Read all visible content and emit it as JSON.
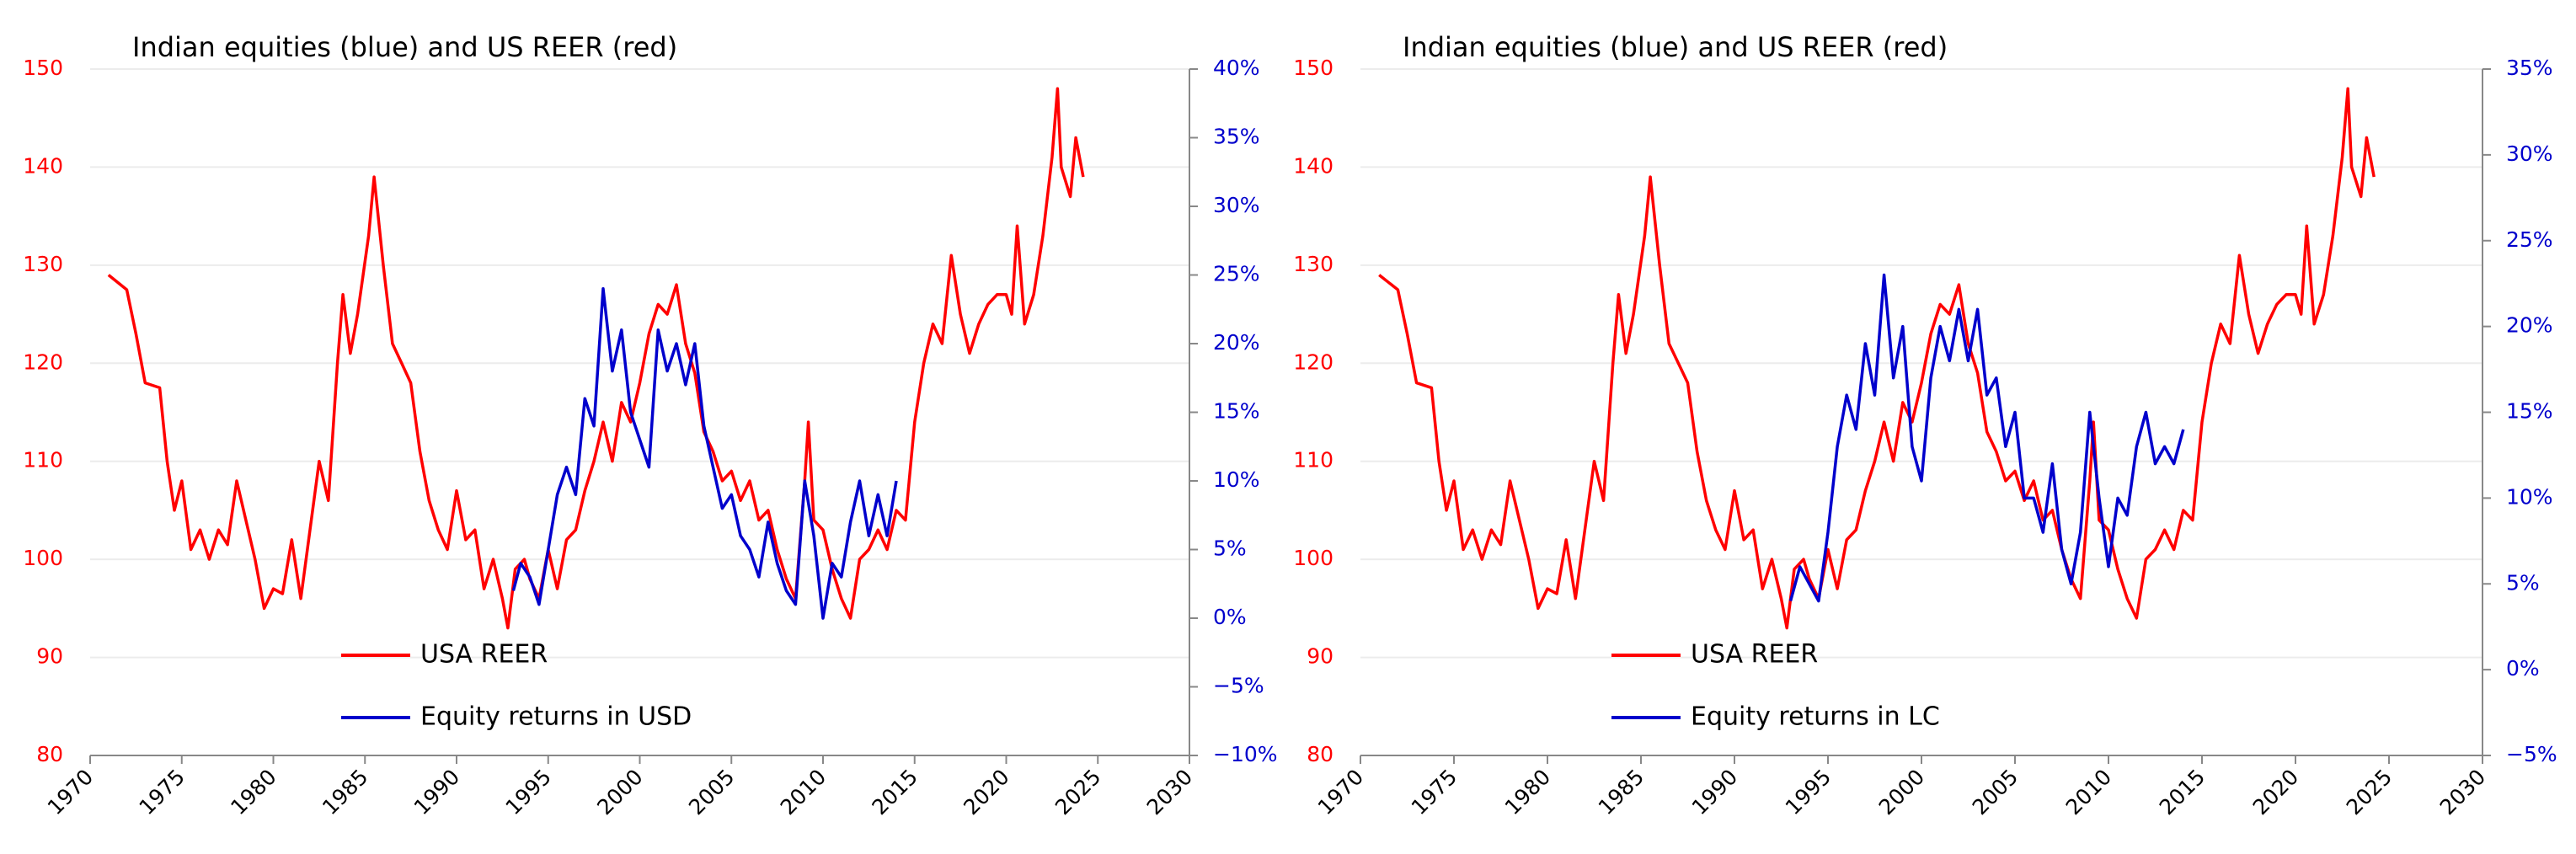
{
  "chart_data": [
    {
      "type": "line",
      "title": "Indian equities (blue) and US REER (red)",
      "xlim": [
        1970,
        2030
      ],
      "xticks": [
        1970,
        1975,
        1980,
        1985,
        1990,
        1995,
        2000,
        2005,
        2010,
        2015,
        2020,
        2025,
        2030
      ],
      "ylim": [
        80,
        150
      ],
      "yticks": [
        80,
        90,
        100,
        110,
        120,
        130,
        140,
        150
      ],
      "y2lim": [
        -10,
        40
      ],
      "y2ticks": [
        {
          "value": -10,
          "label": "−10%"
        },
        {
          "value": -5,
          "label": "−5%"
        },
        {
          "value": 0,
          "label": "0%"
        },
        {
          "value": 5,
          "label": "5%"
        },
        {
          "value": 10,
          "label": "10%"
        },
        {
          "value": 15,
          "label": "15%"
        },
        {
          "value": 20,
          "label": "20%"
        },
        {
          "value": 25,
          "label": "25%"
        },
        {
          "value": 30,
          "label": "30%"
        },
        {
          "value": 35,
          "label": "35%"
        },
        {
          "value": 40,
          "label": "40%"
        }
      ],
      "grid": true,
      "legend": "lower left",
      "series": [
        {
          "name": "USA REER",
          "color": "#ff0000",
          "x": [
            1971,
            1972,
            1972.5,
            1973,
            1973.8,
            1974.2,
            1974.6,
            1975,
            1975.5,
            1976,
            1976.5,
            1977,
            1977.5,
            1978,
            1978.5,
            1979,
            1979.5,
            1980,
            1980.5,
            1981,
            1981.5,
            1982,
            1982.5,
            1983,
            1983.5,
            1983.8,
            1984.2,
            1984.6,
            1985.2,
            1985.5,
            1986,
            1986.5,
            1987,
            1987.5,
            1988,
            1988.5,
            1989,
            1989.5,
            1990,
            1990.5,
            1991,
            1991.5,
            1992,
            1992.5,
            1992.8,
            1993.2,
            1993.7,
            1994,
            1994.5,
            1995,
            1995.5,
            1996,
            1996.5,
            1997,
            1997.5,
            1998,
            1998.5,
            1999,
            1999.5,
            2000,
            2000.5,
            2001,
            2001.5,
            2002,
            2002.5,
            2003,
            2003.5,
            2004,
            2004.5,
            2005,
            2005.5,
            2006,
            2006.5,
            2007,
            2007.5,
            2008,
            2008.5,
            2009,
            2009.2,
            2009.5,
            2010,
            2010.5,
            2011,
            2011.5,
            2012,
            2012.5,
            2013,
            2013.5,
            2014,
            2014.5,
            2015,
            2015.5,
            2016,
            2016.5,
            2017,
            2017.5,
            2018,
            2018.5,
            2019,
            2019.5,
            2020,
            2020.3,
            2020.6,
            2021,
            2021.5,
            2022,
            2022.5,
            2022.8,
            2023,
            2023.5,
            2023.8,
            2024.2
          ],
          "values": [
            129,
            127.5,
            123,
            118,
            117.5,
            110,
            105,
            108,
            101,
            103,
            100,
            103,
            101.5,
            108,
            104,
            100,
            95,
            97,
            96.5,
            102,
            96,
            103,
            110,
            106,
            120,
            127,
            121,
            125,
            133,
            139,
            130,
            122,
            120,
            118,
            111,
            106,
            103,
            101,
            107,
            102,
            103,
            97,
            100,
            96,
            93,
            99,
            100,
            98,
            96,
            101,
            97,
            102,
            103,
            107,
            110,
            114,
            110,
            116,
            114,
            118,
            123,
            126,
            125,
            128,
            122,
            119,
            113,
            111,
            108,
            109,
            106,
            108,
            104,
            105,
            101,
            98,
            96,
            108,
            114,
            104,
            103,
            99,
            96,
            94,
            100,
            101,
            103,
            101,
            105,
            104,
            114,
            120,
            124,
            122,
            131,
            125,
            121,
            124,
            126,
            127,
            127,
            125,
            134,
            124,
            127,
            133,
            141,
            148,
            140,
            137,
            143,
            139
          ]
        },
        {
          "name": "Equity returns in USD",
          "color": "#0000cc",
          "axis": "y2",
          "x": [
            1993.1,
            1993.5,
            1994,
            1994.5,
            1995,
            1995.5,
            1996,
            1996.5,
            1997,
            1997.5,
            1998,
            1998.5,
            1999,
            1999.5,
            2000,
            2000.5,
            2001,
            2001.5,
            2002,
            2002.5,
            2003,
            2003.5,
            2004,
            2004.5,
            2005,
            2005.5,
            2006,
            2006.5,
            2007,
            2007.5,
            2008,
            2008.5,
            2009,
            2009.5,
            2010,
            2010.5,
            2011,
            2011.5,
            2012,
            2012.5,
            2013,
            2013.5,
            2014
          ],
          "values": [
            2,
            4,
            3,
            1,
            5,
            9,
            11,
            9,
            16,
            14,
            24,
            18,
            21,
            15,
            13,
            11,
            21,
            18,
            20,
            17,
            20,
            14,
            11,
            8,
            9,
            6,
            5,
            3,
            7,
            4,
            2,
            1,
            10,
            6,
            0,
            4,
            3,
            7,
            10,
            6,
            9,
            6,
            10
          ]
        }
      ]
    },
    {
      "type": "line",
      "title": "Indian equities (blue) and US REER (red)",
      "xlim": [
        1970,
        2030
      ],
      "xticks": [
        1970,
        1975,
        1980,
        1985,
        1990,
        1995,
        2000,
        2005,
        2010,
        2015,
        2020,
        2025,
        2030
      ],
      "ylim": [
        80,
        150
      ],
      "yticks": [
        80,
        90,
        100,
        110,
        120,
        130,
        140,
        150
      ],
      "y2lim": [
        -5,
        35
      ],
      "y2ticks": [
        {
          "value": -5,
          "label": "−5%"
        },
        {
          "value": 0,
          "label": "0%"
        },
        {
          "value": 5,
          "label": "5%"
        },
        {
          "value": 10,
          "label": "10%"
        },
        {
          "value": 15,
          "label": "15%"
        },
        {
          "value": 20,
          "label": "20%"
        },
        {
          "value": 25,
          "label": "25%"
        },
        {
          "value": 30,
          "label": "30%"
        },
        {
          "value": 35,
          "label": "35%"
        }
      ],
      "grid": true,
      "legend": "lower left",
      "series": [
        {
          "name": "USA REER",
          "color": "#ff0000",
          "x": [
            1971,
            1972,
            1972.5,
            1973,
            1973.8,
            1974.2,
            1974.6,
            1975,
            1975.5,
            1976,
            1976.5,
            1977,
            1977.5,
            1978,
            1978.5,
            1979,
            1979.5,
            1980,
            1980.5,
            1981,
            1981.5,
            1982,
            1982.5,
            1983,
            1983.5,
            1983.8,
            1984.2,
            1984.6,
            1985.2,
            1985.5,
            1986,
            1986.5,
            1987,
            1987.5,
            1988,
            1988.5,
            1989,
            1989.5,
            1990,
            1990.5,
            1991,
            1991.5,
            1992,
            1992.5,
            1992.8,
            1993.2,
            1993.7,
            1994,
            1994.5,
            1995,
            1995.5,
            1996,
            1996.5,
            1997,
            1997.5,
            1998,
            1998.5,
            1999,
            1999.5,
            2000,
            2000.5,
            2001,
            2001.5,
            2002,
            2002.5,
            2003,
            2003.5,
            2004,
            2004.5,
            2005,
            2005.5,
            2006,
            2006.5,
            2007,
            2007.5,
            2008,
            2008.5,
            2009,
            2009.2,
            2009.5,
            2010,
            2010.5,
            2011,
            2011.5,
            2012,
            2012.5,
            2013,
            2013.5,
            2014,
            2014.5,
            2015,
            2015.5,
            2016,
            2016.5,
            2017,
            2017.5,
            2018,
            2018.5,
            2019,
            2019.5,
            2020,
            2020.3,
            2020.6,
            2021,
            2021.5,
            2022,
            2022.5,
            2022.8,
            2023,
            2023.5,
            2023.8,
            2024.2
          ],
          "values": [
            129,
            127.5,
            123,
            118,
            117.5,
            110,
            105,
            108,
            101,
            103,
            100,
            103,
            101.5,
            108,
            104,
            100,
            95,
            97,
            96.5,
            102,
            96,
            103,
            110,
            106,
            120,
            127,
            121,
            125,
            133,
            139,
            130,
            122,
            120,
            118,
            111,
            106,
            103,
            101,
            107,
            102,
            103,
            97,
            100,
            96,
            93,
            99,
            100,
            98,
            96,
            101,
            97,
            102,
            103,
            107,
            110,
            114,
            110,
            116,
            114,
            118,
            123,
            126,
            125,
            128,
            122,
            119,
            113,
            111,
            108,
            109,
            106,
            108,
            104,
            105,
            101,
            98,
            96,
            108,
            114,
            104,
            103,
            99,
            96,
            94,
            100,
            101,
            103,
            101,
            105,
            104,
            114,
            120,
            124,
            122,
            131,
            125,
            121,
            124,
            126,
            127,
            127,
            125,
            134,
            124,
            127,
            133,
            141,
            148,
            140,
            137,
            143,
            139
          ]
        },
        {
          "name": "Equity returns in LC",
          "color": "#0000cc",
          "axis": "y2",
          "x": [
            1993,
            1993.5,
            1994,
            1994.5,
            1995,
            1995.5,
            1996,
            1996.5,
            1997,
            1997.5,
            1998,
            1998.5,
            1999,
            1999.5,
            2000,
            2000.5,
            2001,
            2001.5,
            2002,
            2002.5,
            2003,
            2003.5,
            2004,
            2004.5,
            2005,
            2005.5,
            2006,
            2006.5,
            2007,
            2007.5,
            2008,
            2008.5,
            2009,
            2009.5,
            2010,
            2010.5,
            2011,
            2011.5,
            2012,
            2012.5,
            2013,
            2013.5,
            2014
          ],
          "values": [
            4,
            6,
            5,
            4,
            8,
            13,
            16,
            14,
            19,
            16,
            23,
            17,
            20,
            13,
            11,
            17,
            20,
            18,
            21,
            18,
            21,
            16,
            17,
            13,
            15,
            10,
            10,
            8,
            12,
            7,
            5,
            8,
            15,
            10,
            6,
            10,
            9,
            13,
            15,
            12,
            13,
            12,
            14
          ]
        }
      ]
    }
  ]
}
